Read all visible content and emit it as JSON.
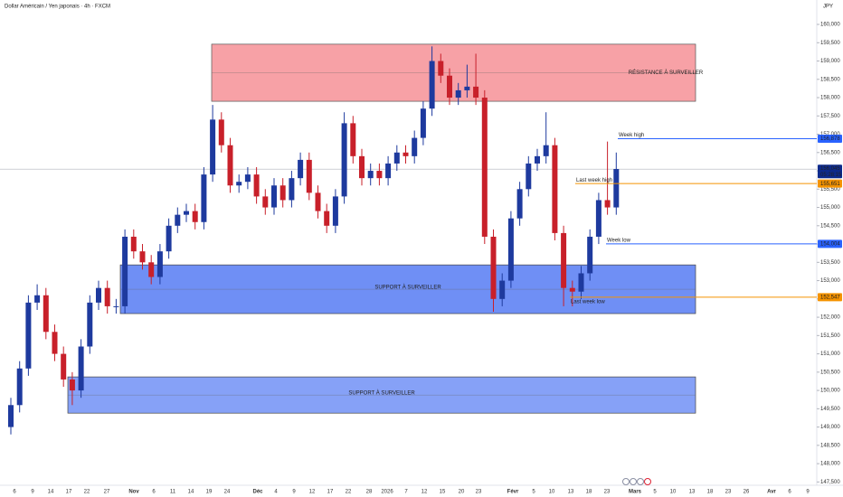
{
  "chart_data": {
    "type": "candlestick",
    "title": "Dollar Américain / Yen japonais · 4h · FXCM",
    "currency": "JPY",
    "up_color": "#1e3a9e",
    "down_color": "#c8202a",
    "ylim": [
      147.41,
      160.667
    ],
    "yticks": [
      {
        "value": 147.5,
        "label": "147,500"
      },
      {
        "value": 148,
        "label": "148,000"
      },
      {
        "value": 148.5,
        "label": "148,500"
      },
      {
        "value": 149,
        "label": "149,000"
      },
      {
        "value": 149.5,
        "label": "149,500"
      },
      {
        "value": 150,
        "label": "150,000"
      },
      {
        "value": 150.5,
        "label": "150,500"
      },
      {
        "value": 151,
        "label": "151,000"
      },
      {
        "value": 151.5,
        "label": "151,500"
      },
      {
        "value": 152,
        "label": "152,000"
      },
      {
        "value": 152.5,
        "label": "152,500"
      },
      {
        "value": 153,
        "label": "153,000"
      },
      {
        "value": 153.5,
        "label": "153,500"
      },
      {
        "value": 154,
        "label": "154,000"
      },
      {
        "value": 154.5,
        "label": "154,500"
      },
      {
        "value": 155,
        "label": "155,000"
      },
      {
        "value": 155.5,
        "label": "155,500"
      },
      {
        "value": 156,
        "label": "156,000"
      },
      {
        "value": 156.5,
        "label": "156,500"
      },
      {
        "value": 157,
        "label": "157,000"
      },
      {
        "value": 157.5,
        "label": "157,500"
      },
      {
        "value": 158,
        "label": "158,000"
      },
      {
        "value": 158.5,
        "label": "158,500"
      },
      {
        "value": 159,
        "label": "159,000"
      },
      {
        "value": 159.5,
        "label": "159,500"
      },
      {
        "value": 160,
        "label": "160,000"
      }
    ],
    "time_labels": [
      "6",
      "9",
      "14",
      "17",
      "22",
      "27",
      "Nov",
      "6",
      "11",
      "14",
      "19",
      "24",
      "Déc",
      "4",
      "9",
      "12",
      "17",
      "22",
      "28",
      "2026",
      "7",
      "12",
      "15",
      "20",
      "23",
      "Févr",
      "5",
      "10",
      "13",
      "18",
      "23",
      "Mars",
      "5",
      "10",
      "13",
      "18",
      "23",
      "26",
      "Avr",
      "6",
      "9"
    ],
    "series": {
      "open": [
        149.0,
        149.6,
        150.6,
        152.4,
        152.6,
        151.6,
        151.0,
        150.3,
        150.0,
        151.2,
        152.4,
        152.8,
        152.3,
        152.3,
        154.2,
        153.8,
        153.5,
        153.1,
        153.8,
        154.5,
        154.8,
        154.9,
        154.6,
        155.9,
        157.4,
        156.7,
        155.6,
        155.7,
        155.9,
        155.3,
        155.0,
        155.6,
        155.2,
        155.8,
        156.3,
        155.4,
        154.9,
        154.5,
        155.3,
        157.3,
        156.4,
        155.8,
        156.0,
        155.8,
        156.2,
        156.5,
        156.4,
        156.9,
        157.7,
        159.0,
        158.6,
        158.0,
        158.2,
        158.3,
        158.0,
        154.2,
        152.5,
        153.0,
        154.7,
        155.5,
        156.2,
        156.4,
        156.7,
        154.3,
        152.8,
        152.7,
        153.2,
        154.2,
        155.2,
        155.0
      ],
      "high": [
        149.8,
        150.8,
        152.6,
        152.9,
        152.8,
        151.8,
        151.2,
        150.5,
        151.4,
        152.6,
        153.0,
        153.0,
        152.5,
        154.4,
        154.4,
        154.0,
        153.7,
        154.0,
        154.7,
        155.0,
        155.1,
        155.1,
        156.1,
        157.8,
        157.6,
        156.9,
        155.9,
        156.1,
        156.1,
        155.5,
        155.8,
        155.8,
        156.0,
        156.5,
        156.5,
        155.6,
        155.1,
        155.5,
        157.6,
        157.5,
        156.6,
        156.2,
        156.2,
        156.4,
        156.7,
        156.7,
        157.1,
        157.9,
        159.4,
        159.2,
        158.8,
        158.4,
        158.9,
        159.2,
        158.2,
        154.4,
        153.2,
        154.9,
        155.7,
        156.4,
        156.6,
        157.6,
        156.9,
        154.5,
        153.0,
        153.4,
        154.4,
        155.4,
        156.8,
        156.5
      ],
      "low": [
        148.8,
        149.4,
        150.4,
        152.2,
        151.4,
        150.8,
        150.1,
        149.6,
        149.8,
        151.0,
        152.2,
        152.1,
        152.1,
        152.1,
        153.6,
        153.3,
        152.9,
        152.9,
        153.6,
        154.3,
        154.6,
        154.4,
        154.4,
        155.7,
        156.5,
        155.4,
        155.4,
        155.5,
        155.1,
        154.8,
        154.8,
        155.0,
        155.0,
        155.6,
        155.2,
        154.7,
        154.3,
        154.3,
        155.1,
        156.2,
        155.6,
        155.6,
        155.6,
        155.6,
        156.0,
        156.2,
        156.2,
        156.7,
        157.5,
        158.4,
        157.8,
        157.8,
        158.0,
        157.8,
        154.0,
        152.15,
        152.3,
        152.8,
        154.5,
        155.3,
        156.0,
        156.2,
        154.1,
        152.3,
        152.3,
        152.5,
        153.0,
        154.0,
        154.8,
        154.8
      ],
      "close": [
        149.6,
        150.6,
        152.4,
        152.6,
        151.6,
        151.0,
        150.3,
        150.0,
        151.2,
        152.4,
        152.8,
        152.3,
        152.3,
        154.2,
        153.8,
        153.5,
        153.1,
        153.8,
        154.5,
        154.8,
        154.9,
        154.6,
        155.9,
        157.4,
        156.7,
        155.6,
        155.7,
        155.9,
        155.3,
        155.0,
        155.6,
        155.2,
        155.8,
        156.3,
        155.4,
        154.9,
        154.5,
        155.3,
        157.3,
        156.4,
        155.8,
        156.0,
        155.8,
        156.2,
        156.5,
        156.4,
        156.9,
        157.7,
        159.0,
        158.6,
        158.0,
        158.2,
        158.3,
        158.0,
        154.2,
        152.5,
        153.0,
        154.7,
        155.5,
        156.2,
        156.4,
        156.7,
        154.3,
        152.8,
        152.7,
        153.2,
        154.2,
        155.2,
        155.0,
        156.05
      ]
    },
    "zones": [
      {
        "name": "RÉSISTANCE À SURVEILLER",
        "low": 157.9,
        "high": 159.46,
        "color": "#f7a1a6",
        "border": "#555555"
      },
      {
        "name": "SUPPORT À SURVEILLER",
        "low": 152.1,
        "high": 153.43,
        "color": "#6f8ff5",
        "border": "#444444"
      },
      {
        "name": "SUPPORT À SURVEILLER",
        "low": 149.38,
        "high": 150.37,
        "color": "#86a1f7",
        "border": "#444444"
      }
    ],
    "levels": [
      {
        "name": "Week high",
        "value": 156.878,
        "label": "156,878",
        "color": "#2962ff"
      },
      {
        "name": "Last week high",
        "value": 155.651,
        "label": "155,651",
        "color": "#f59300"
      },
      {
        "name": "Week low",
        "value": 154.004,
        "label": "154,004",
        "color": "#2962ff"
      },
      {
        "name": "Last week low",
        "value": 152.547,
        "label": "152,547",
        "color": "#f59300"
      }
    ],
    "current": {
      "value": 156.045,
      "label": "156,045",
      "countdown": "05:28:15",
      "color": "#0d2a8c"
    }
  }
}
